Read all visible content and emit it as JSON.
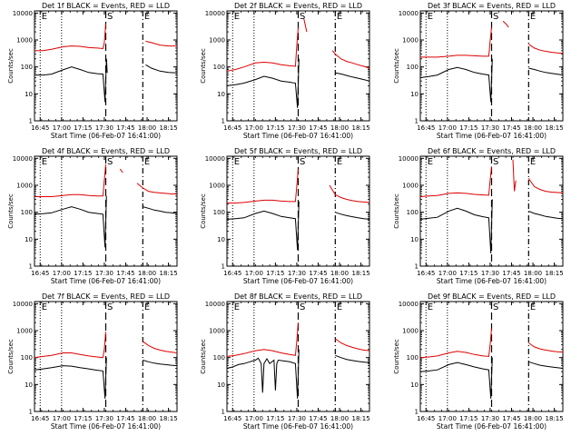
{
  "layout": {
    "rows": 3,
    "cols": 3
  },
  "colors": {
    "events": "#000000",
    "lld": "#dd0000",
    "axes": "#000000"
  },
  "common": {
    "ylabel": "Counts/sec",
    "xlabel": "Start Time (06-Feb-07 16:41:00)",
    "x_tick_labels": [
      "16:45",
      "17:00",
      "17:15",
      "17:30",
      "17:45",
      "18:00",
      "18:15"
    ],
    "x_tick_minutes": [
      4,
      19,
      34,
      49,
      64,
      79,
      94
    ],
    "x_range_minutes": [
      0,
      100
    ],
    "y_tick_labels": [
      "1",
      "10",
      "100",
      "1000",
      "10000"
    ],
    "y_tick_values": [
      1,
      10,
      100,
      1000,
      10000
    ],
    "y_range": [
      1,
      12000
    ],
    "y_scale": "log",
    "markers": [
      {
        "label": "E",
        "minute": 4,
        "style": "dotted"
      },
      {
        "label": "S",
        "minute": 50,
        "style": "dashed"
      },
      {
        "label": "E",
        "minute": 76,
        "style": "dash-dot"
      }
    ],
    "extra_dotted_minute": 19
  },
  "chart_data": [
    {
      "type": "line",
      "title": "Det 1f BLACK = Events, RED = LLD",
      "series": [
        {
          "name": "Events",
          "x": [
            0,
            6,
            12,
            20,
            26,
            32,
            38,
            44,
            48,
            49.5,
            50.5,
            51,
            52,
            56,
            60,
            64,
            68,
            72,
            76,
            78,
            82,
            88,
            94,
            100
          ],
          "y": [
            50,
            50,
            54,
            78,
            100,
            80,
            62,
            56,
            54,
            5,
            200,
            60,
            null,
            null,
            null,
            null,
            null,
            null,
            null,
            120,
            90,
            70,
            62,
            60
          ]
        },
        {
          "name": "LLD",
          "x": [
            0,
            6,
            12,
            20,
            26,
            32,
            38,
            44,
            48,
            49,
            50,
            51,
            52,
            56,
            60,
            64,
            68,
            72,
            76,
            78,
            82,
            88,
            94,
            100
          ],
          "y": [
            400,
            400,
            450,
            560,
            600,
            580,
            520,
            500,
            480,
            800,
            4000,
            null,
            null,
            null,
            null,
            null,
            null,
            null,
            null,
            900,
            800,
            650,
            600,
            600
          ]
        }
      ]
    },
    {
      "type": "line",
      "title": "Det 2f BLACK = Events, RED = LLD",
      "series": [
        {
          "name": "Events",
          "x": [
            0,
            6,
            12,
            20,
            26,
            32,
            38,
            44,
            48,
            49.5,
            50.5,
            51,
            52,
            56,
            60,
            64,
            68,
            72,
            76,
            80,
            84,
            88,
            92,
            96,
            100
          ],
          "y": [
            20,
            22,
            25,
            34,
            45,
            38,
            30,
            27,
            25,
            3,
            200,
            null,
            null,
            null,
            null,
            null,
            null,
            null,
            60,
            55,
            48,
            42,
            38,
            34,
            30
          ]
        },
        {
          "name": "LLD",
          "x": [
            0,
            6,
            12,
            20,
            26,
            32,
            38,
            44,
            48,
            49,
            50,
            51,
            52,
            54,
            56,
            60,
            64,
            68,
            72,
            74,
            76,
            80,
            84,
            88,
            92,
            96,
            100
          ],
          "y": [
            70,
            80,
            100,
            140,
            150,
            140,
            120,
            110,
            105,
            600,
            3000,
            null,
            null,
            6000,
            2000,
            null,
            null,
            null,
            null,
            400,
            300,
            200,
            160,
            140,
            120,
            105,
            90
          ]
        }
      ]
    },
    {
      "type": "line",
      "title": "Det 3f BLACK = Events, RED = LLD",
      "series": [
        {
          "name": "Events",
          "x": [
            0,
            6,
            12,
            20,
            26,
            32,
            38,
            44,
            48,
            49.5,
            50.5,
            51,
            52,
            56,
            60,
            64,
            68,
            72,
            76,
            80,
            84,
            88,
            92,
            96,
            100
          ],
          "y": [
            40,
            44,
            50,
            80,
            95,
            80,
            62,
            54,
            50,
            5,
            200,
            null,
            null,
            null,
            null,
            null,
            null,
            null,
            90,
            80,
            70,
            62,
            58,
            54,
            50
          ]
        },
        {
          "name": "LLD",
          "x": [
            0,
            6,
            12,
            20,
            26,
            32,
            38,
            44,
            48,
            49,
            50,
            51,
            52,
            56,
            58,
            60,
            62,
            64,
            68,
            72,
            76,
            80,
            84,
            88,
            92,
            96,
            100
          ],
          "y": [
            230,
            230,
            230,
            250,
            270,
            270,
            260,
            250,
            250,
            900,
            3000,
            null,
            null,
            null,
            5000,
            4000,
            3000,
            null,
            null,
            null,
            700,
            500,
            420,
            380,
            350,
            330,
            320
          ]
        }
      ]
    },
    {
      "type": "line",
      "title": "Det 4f BLACK = Events, RED = LLD",
      "series": [
        {
          "name": "Events",
          "x": [
            0,
            6,
            12,
            20,
            26,
            32,
            38,
            44,
            48,
            49.5,
            50.5,
            51,
            52,
            56,
            60,
            64,
            68,
            72,
            76,
            80,
            84,
            88,
            92,
            96,
            100
          ],
          "y": [
            85,
            88,
            95,
            130,
            160,
            130,
            100,
            90,
            85,
            5,
            400,
            null,
            null,
            null,
            null,
            null,
            null,
            null,
            160,
            140,
            120,
            110,
            100,
            95,
            90
          ]
        },
        {
          "name": "LLD",
          "x": [
            0,
            6,
            12,
            20,
            26,
            32,
            38,
            44,
            48,
            49,
            50,
            51,
            52,
            56,
            58,
            60,
            62,
            64,
            66,
            68,
            72,
            76,
            80,
            84,
            88,
            92,
            96,
            100
          ],
          "y": [
            380,
            380,
            380,
            420,
            450,
            450,
            420,
            400,
            400,
            1500,
            6000,
            null,
            null,
            null,
            null,
            4000,
            3000,
            null,
            null,
            null,
            1200,
            800,
            600,
            550,
            520,
            500,
            480,
            480
          ]
        }
      ]
    },
    {
      "type": "line",
      "title": "Det 5f BLACK = Events, RED = LLD",
      "series": [
        {
          "name": "Events",
          "x": [
            0,
            6,
            12,
            20,
            26,
            32,
            38,
            44,
            48,
            49.5,
            50.5,
            51,
            52,
            56,
            60,
            64,
            68,
            72,
            76,
            80,
            84,
            88,
            92,
            96,
            100
          ],
          "y": [
            55,
            58,
            62,
            90,
            110,
            90,
            70,
            62,
            58,
            4,
            250,
            null,
            null,
            null,
            null,
            null,
            null,
            null,
            100,
            85,
            75,
            68,
            62,
            58,
            55
          ]
        },
        {
          "name": "LLD",
          "x": [
            0,
            6,
            12,
            20,
            26,
            32,
            38,
            44,
            48,
            49,
            50,
            51,
            52,
            56,
            60,
            64,
            66,
            68,
            72,
            76,
            80,
            84,
            88,
            92,
            96,
            100
          ],
          "y": [
            220,
            220,
            230,
            260,
            280,
            280,
            260,
            250,
            250,
            900,
            4000,
            null,
            null,
            null,
            null,
            null,
            null,
            null,
            1000,
            450,
            350,
            300,
            270,
            250,
            240,
            230
          ]
        }
      ]
    },
    {
      "type": "line",
      "title": "Det 6f BLACK = Events, RED = LLD",
      "series": [
        {
          "name": "Events",
          "x": [
            0,
            6,
            12,
            20,
            26,
            32,
            38,
            44,
            48,
            49.5,
            50.5,
            51,
            52,
            56,
            60,
            64,
            68,
            72,
            76,
            80,
            84,
            88,
            92,
            96,
            100
          ],
          "y": [
            55,
            60,
            65,
            110,
            140,
            110,
            80,
            68,
            62,
            3,
            300,
            null,
            null,
            null,
            null,
            null,
            null,
            null,
            110,
            90,
            80,
            70,
            65,
            60,
            58
          ]
        },
        {
          "name": "LLD",
          "x": [
            0,
            6,
            12,
            20,
            26,
            32,
            38,
            44,
            48,
            49,
            50,
            51,
            52,
            56,
            60,
            64,
            65,
            66,
            67,
            68,
            72,
            74,
            76,
            80,
            84,
            88,
            92,
            96,
            100
          ],
          "y": [
            380,
            400,
            420,
            500,
            520,
            500,
            460,
            440,
            430,
            1500,
            5000,
            null,
            null,
            null,
            null,
            null,
            9000,
            600,
            1500,
            null,
            null,
            null,
            1800,
            900,
            700,
            600,
            560,
            540,
            520
          ]
        }
      ]
    },
    {
      "type": "line",
      "title": "Det 7f BLACK = Events, RED = LLD",
      "series": [
        {
          "name": "Events",
          "x": [
            0,
            6,
            12,
            20,
            26,
            32,
            38,
            44,
            48,
            49.5,
            50.5,
            51,
            52,
            56,
            60,
            64,
            68,
            72,
            76,
            80,
            84,
            88,
            92,
            96,
            100
          ],
          "y": [
            35,
            38,
            42,
            50,
            48,
            42,
            38,
            34,
            32,
            3,
            100,
            null,
            null,
            null,
            null,
            null,
            null,
            null,
            80,
            70,
            62,
            58,
            55,
            52,
            50
          ]
        },
        {
          "name": "LLD",
          "x": [
            0,
            6,
            12,
            20,
            26,
            32,
            38,
            44,
            48,
            49,
            50,
            51,
            52,
            56,
            60,
            64,
            68,
            72,
            76,
            80,
            84,
            88,
            92,
            96,
            100
          ],
          "y": [
            100,
            110,
            120,
            150,
            150,
            130,
            115,
            105,
            100,
            200,
            900,
            null,
            null,
            null,
            null,
            null,
            null,
            null,
            400,
            280,
            220,
            190,
            170,
            160,
            150
          ]
        }
      ]
    },
    {
      "type": "line",
      "title": "Det 8f BLACK = Events, RED = LLD",
      "series": [
        {
          "name": "Events",
          "x": [
            0,
            4,
            8,
            12,
            16,
            20,
            22,
            24,
            25,
            26,
            28,
            30,
            33,
            34,
            35,
            36,
            40,
            44,
            48,
            49.5,
            50.5,
            51,
            52,
            56,
            60,
            64,
            68,
            72,
            76,
            80,
            84,
            88,
            92,
            96,
            100
          ],
          "y": [
            40,
            45,
            55,
            60,
            70,
            80,
            95,
            60,
            5,
            60,
            90,
            60,
            80,
            6,
            60,
            80,
            75,
            70,
            60,
            3,
            200,
            null,
            null,
            null,
            null,
            null,
            null,
            null,
            120,
            100,
            85,
            78,
            72,
            68,
            65
          ]
        },
        {
          "name": "LLD",
          "x": [
            0,
            6,
            12,
            20,
            26,
            32,
            38,
            44,
            48,
            49,
            50,
            51,
            52,
            56,
            60,
            64,
            68,
            72,
            76,
            80,
            84,
            88,
            92,
            96,
            100
          ],
          "y": [
            110,
            120,
            140,
            180,
            200,
            180,
            150,
            130,
            120,
            400,
            2000,
            null,
            null,
            null,
            null,
            null,
            null,
            null,
            500,
            350,
            280,
            240,
            210,
            190,
            180
          ]
        }
      ]
    },
    {
      "type": "line",
      "title": "Det 9f BLACK = Events, RED = LLD",
      "series": [
        {
          "name": "Events",
          "x": [
            0,
            6,
            12,
            20,
            26,
            32,
            38,
            44,
            48,
            49.5,
            50.5,
            51,
            52,
            56,
            60,
            64,
            68,
            72,
            76,
            80,
            84,
            88,
            92,
            96,
            100
          ],
          "y": [
            30,
            32,
            35,
            55,
            65,
            55,
            45,
            38,
            35,
            3,
            100,
            null,
            null,
            null,
            null,
            null,
            null,
            null,
            70,
            60,
            52,
            48,
            45,
            42,
            40
          ]
        },
        {
          "name": "LLD",
          "x": [
            0,
            6,
            12,
            20,
            26,
            32,
            38,
            44,
            48,
            49,
            50,
            51,
            52,
            56,
            60,
            64,
            68,
            72,
            76,
            80,
            84,
            88,
            92,
            96,
            100
          ],
          "y": [
            100,
            105,
            115,
            150,
            170,
            155,
            130,
            115,
            110,
            300,
            1200,
            null,
            null,
            null,
            null,
            null,
            null,
            null,
            350,
            250,
            210,
            190,
            175,
            165,
            160
          ]
        }
      ]
    }
  ]
}
